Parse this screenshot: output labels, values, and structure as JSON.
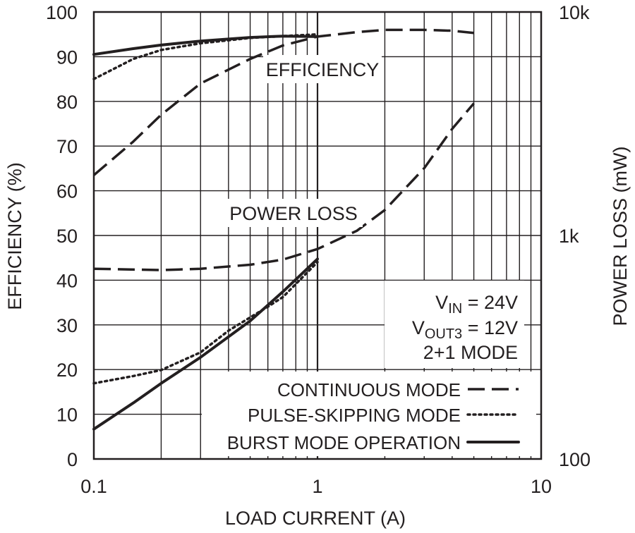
{
  "chart_data": {
    "type": "line",
    "title": "",
    "xlabel": "LOAD CURRENT (A)",
    "ylabel": "EFFICIENCY (%)",
    "y2label": "POWER LOSS (mW)",
    "x_scale": "log",
    "xlim": [
      0.1,
      10
    ],
    "ylim": [
      0,
      100
    ],
    "y2_scale": "log",
    "y2lim": [
      100,
      10000
    ],
    "grid": true,
    "x_ticks": [
      "0.1",
      "1",
      "10"
    ],
    "y_ticks": [
      "0",
      "10",
      "20",
      "30",
      "40",
      "50",
      "60",
      "70",
      "80",
      "90",
      "100"
    ],
    "y2_ticks": [
      "100",
      "1k",
      "10k"
    ],
    "annotations": {
      "efficiency": "EFFICIENCY",
      "power_loss": "POWER LOSS",
      "conditions": [
        {
          "main": "V",
          "sub": "IN",
          "rest": " = 24V"
        },
        {
          "main": "V",
          "sub": "OUT3",
          "rest": " = 12V"
        },
        {
          "main": "2+1 MODE",
          "sub": "",
          "rest": ""
        }
      ]
    },
    "legend": {
      "position": "bottom-right",
      "entries": [
        "CONTINUOUS MODE",
        "PULSE-SKIPPING MODE",
        "BURST MODE OPERATION"
      ]
    },
    "series": [
      {
        "name": "CONTINUOUS MODE",
        "group": "efficiency",
        "axis": "left",
        "style": "dashed",
        "x": [
          0.1,
          0.15,
          0.2,
          0.3,
          0.5,
          0.7,
          1,
          1.5,
          2,
          3,
          4,
          5
        ],
        "y": [
          63.5,
          71,
          77,
          84,
          89.5,
          92.5,
          94.5,
          95.5,
          96,
          96,
          95.8,
          95.3
        ]
      },
      {
        "name": "PULSE-SKIPPING MODE",
        "group": "efficiency",
        "axis": "left",
        "style": "dotted",
        "x": [
          0.1,
          0.15,
          0.2,
          0.3,
          0.5,
          0.7,
          1
        ],
        "y": [
          85,
          89.5,
          91.5,
          93,
          94.2,
          94.6,
          95
        ]
      },
      {
        "name": "BURST MODE OPERATION",
        "group": "efficiency",
        "axis": "left",
        "style": "solid",
        "x": [
          0.1,
          0.15,
          0.2,
          0.3,
          0.5,
          0.7,
          1
        ],
        "y": [
          90.5,
          91.8,
          92.6,
          93.5,
          94.3,
          94.6,
          94.5
        ]
      },
      {
        "name": "CONTINUOUS MODE",
        "group": "power_loss",
        "axis": "right",
        "style": "dashed",
        "x": [
          0.1,
          0.2,
          0.3,
          0.5,
          0.7,
          1,
          1.5,
          2,
          3,
          4,
          5
        ],
        "y": [
          710,
          700,
          710,
          740,
          780,
          870,
          1050,
          1300,
          2000,
          3000,
          3900
        ]
      },
      {
        "name": "PULSE-SKIPPING MODE",
        "group": "power_loss",
        "axis": "right",
        "style": "dotted",
        "x": [
          0.1,
          0.15,
          0.2,
          0.3,
          0.4,
          0.5,
          0.6,
          0.7,
          1
        ],
        "y": [
          218,
          235,
          250,
          300,
          375,
          430,
          480,
          530,
          760
        ]
      },
      {
        "name": "BURST MODE OPERATION",
        "group": "power_loss",
        "axis": "right",
        "style": "solid",
        "x": [
          0.1,
          0.15,
          0.2,
          0.3,
          0.5,
          0.7,
          1
        ],
        "y": [
          136,
          178,
          218,
          285,
          415,
          560,
          785
        ]
      }
    ]
  }
}
